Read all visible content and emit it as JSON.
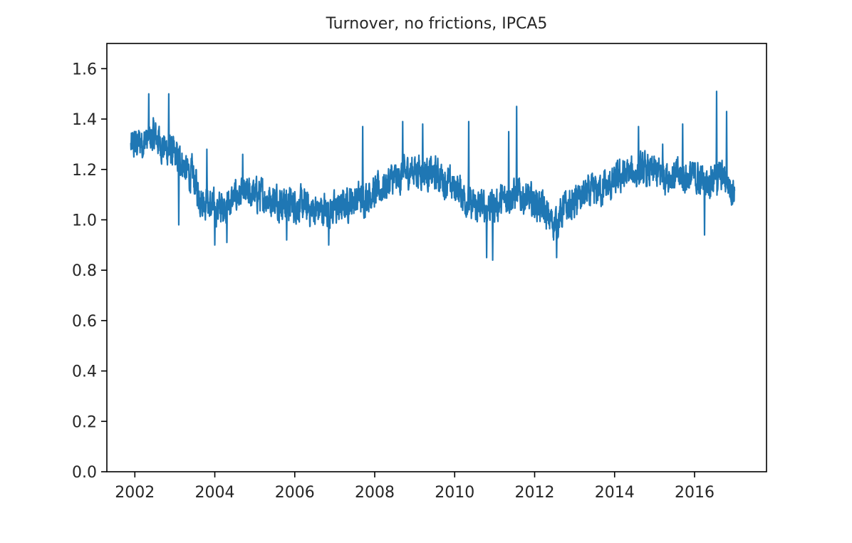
{
  "chart_data": {
    "type": "line",
    "title": "Turnover, no frictions, IPCA5",
    "xlabel": "",
    "ylabel": "",
    "xlim": [
      2001.3,
      2017.8
    ],
    "ylim": [
      0.0,
      1.7
    ],
    "x_ticks": [
      2002,
      2004,
      2006,
      2008,
      2010,
      2012,
      2014,
      2016
    ],
    "x_tick_labels": [
      "2002",
      "2004",
      "2006",
      "2008",
      "2010",
      "2012",
      "2014",
      "2016"
    ],
    "y_ticks": [
      0.0,
      0.2,
      0.4,
      0.6,
      0.8,
      1.0,
      1.2,
      1.4,
      1.6
    ],
    "y_tick_labels": [
      "0.0",
      "0.2",
      "0.4",
      "0.6",
      "0.8",
      "1.0",
      "1.2",
      "1.4",
      "1.6"
    ],
    "grid": false,
    "legend": "none",
    "series": [
      {
        "color": "#1f77b4",
        "x_range": [
          2001.9,
          2017.0
        ],
        "anchors": [
          [
            2001.9,
            1.29
          ],
          [
            2002.2,
            1.31
          ],
          [
            2002.5,
            1.33
          ],
          [
            2002.8,
            1.28
          ],
          [
            2003.1,
            1.24
          ],
          [
            2003.4,
            1.18
          ],
          [
            2003.7,
            1.08
          ],
          [
            2004.0,
            1.04
          ],
          [
            2004.3,
            1.06
          ],
          [
            2004.6,
            1.1
          ],
          [
            2005.0,
            1.1
          ],
          [
            2005.5,
            1.08
          ],
          [
            2006.0,
            1.06
          ],
          [
            2006.5,
            1.04
          ],
          [
            2007.0,
            1.04
          ],
          [
            2007.5,
            1.08
          ],
          [
            2008.0,
            1.11
          ],
          [
            2008.5,
            1.16
          ],
          [
            2009.0,
            1.2
          ],
          [
            2009.5,
            1.18
          ],
          [
            2010.0,
            1.13
          ],
          [
            2010.5,
            1.05
          ],
          [
            2011.0,
            1.06
          ],
          [
            2011.5,
            1.1
          ],
          [
            2012.0,
            1.07
          ],
          [
            2012.5,
            0.99
          ],
          [
            2012.8,
            1.05
          ],
          [
            2013.3,
            1.1
          ],
          [
            2013.8,
            1.13
          ],
          [
            2014.3,
            1.18
          ],
          [
            2014.8,
            1.19
          ],
          [
            2015.3,
            1.18
          ],
          [
            2015.8,
            1.17
          ],
          [
            2016.3,
            1.16
          ],
          [
            2016.7,
            1.17
          ],
          [
            2017.0,
            1.12
          ]
        ],
        "peaks": [
          [
            2002.35,
            1.5
          ],
          [
            2002.85,
            1.5
          ],
          [
            2003.1,
            0.98
          ],
          [
            2003.8,
            1.28
          ],
          [
            2004.0,
            0.9
          ],
          [
            2004.3,
            0.91
          ],
          [
            2004.7,
            1.26
          ],
          [
            2005.8,
            0.92
          ],
          [
            2006.85,
            0.9
          ],
          [
            2007.7,
            1.37
          ],
          [
            2008.7,
            1.39
          ],
          [
            2009.2,
            1.38
          ],
          [
            2010.35,
            1.39
          ],
          [
            2010.8,
            0.85
          ],
          [
            2010.95,
            0.84
          ],
          [
            2011.55,
            1.45
          ],
          [
            2011.35,
            1.35
          ],
          [
            2012.55,
            0.85
          ],
          [
            2014.6,
            1.37
          ],
          [
            2015.2,
            1.3
          ],
          [
            2015.7,
            1.38
          ],
          [
            2016.25,
            0.94
          ],
          [
            2016.55,
            1.51
          ],
          [
            2016.8,
            1.43
          ]
        ],
        "noise_amplitude": 0.07
      }
    ]
  }
}
